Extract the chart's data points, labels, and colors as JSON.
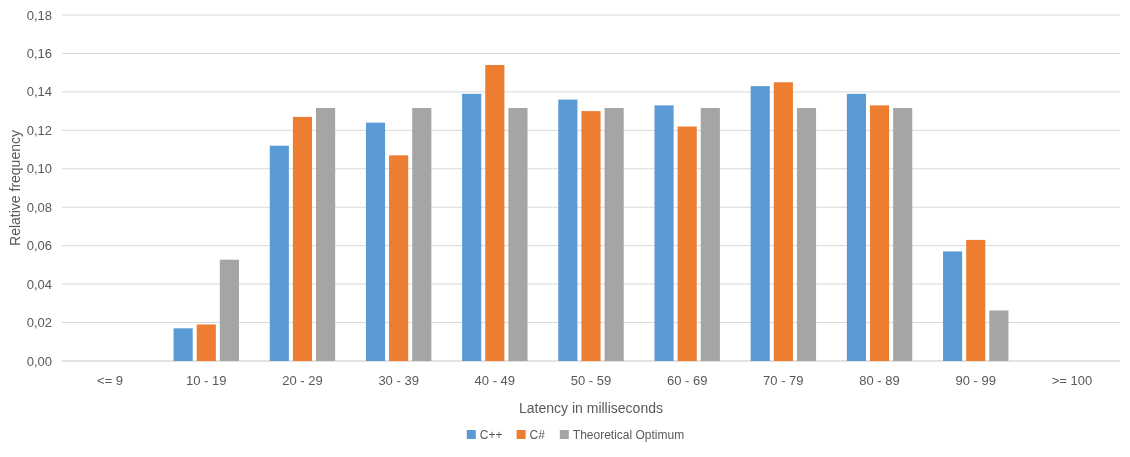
{
  "chart_data": {
    "type": "bar",
    "xlabel": "Latency in milliseconds",
    "ylabel": "Relative frequency",
    "categories": [
      "<= 9",
      "10 - 19",
      "20 - 29",
      "30 - 39",
      "40 - 49",
      "50 - 59",
      "60 - 69",
      "70 - 79",
      "80 - 89",
      "90 - 99",
      ">= 100"
    ],
    "series": [
      {
        "name": "C++",
        "color": "#5b9bd5",
        "values": [
          0,
          0.017,
          0.112,
          0.124,
          0.139,
          0.136,
          0.133,
          0.143,
          0.139,
          0.057,
          0
        ]
      },
      {
        "name": "C#",
        "color": "#ed7d31",
        "values": [
          0,
          0.019,
          0.127,
          0.107,
          0.154,
          0.13,
          0.122,
          0.145,
          0.133,
          0.063,
          0
        ]
      },
      {
        "name": "Theoretical Optimum",
        "color": "#a5a5a5",
        "values": [
          0,
          0.0527,
          0.1316,
          0.1316,
          0.1316,
          0.1316,
          0.1316,
          0.1316,
          0.1316,
          0.0263,
          0
        ]
      }
    ],
    "ylim": [
      0,
      0.18
    ],
    "yticks": [
      {
        "value": 0,
        "label": "0,00"
      },
      {
        "value": 0.02,
        "label": "0,02"
      },
      {
        "value": 0.04,
        "label": "0,04"
      },
      {
        "value": 0.06,
        "label": "0,06"
      },
      {
        "value": 0.08,
        "label": "0,08"
      },
      {
        "value": 0.1,
        "label": "0,10"
      },
      {
        "value": 0.12,
        "label": "0,12"
      },
      {
        "value": 0.14,
        "label": "0,14"
      },
      {
        "value": 0.16,
        "label": "0,16"
      },
      {
        "value": 0.18,
        "label": "0,18"
      }
    ],
    "grid": "y",
    "legend": "bottom"
  }
}
